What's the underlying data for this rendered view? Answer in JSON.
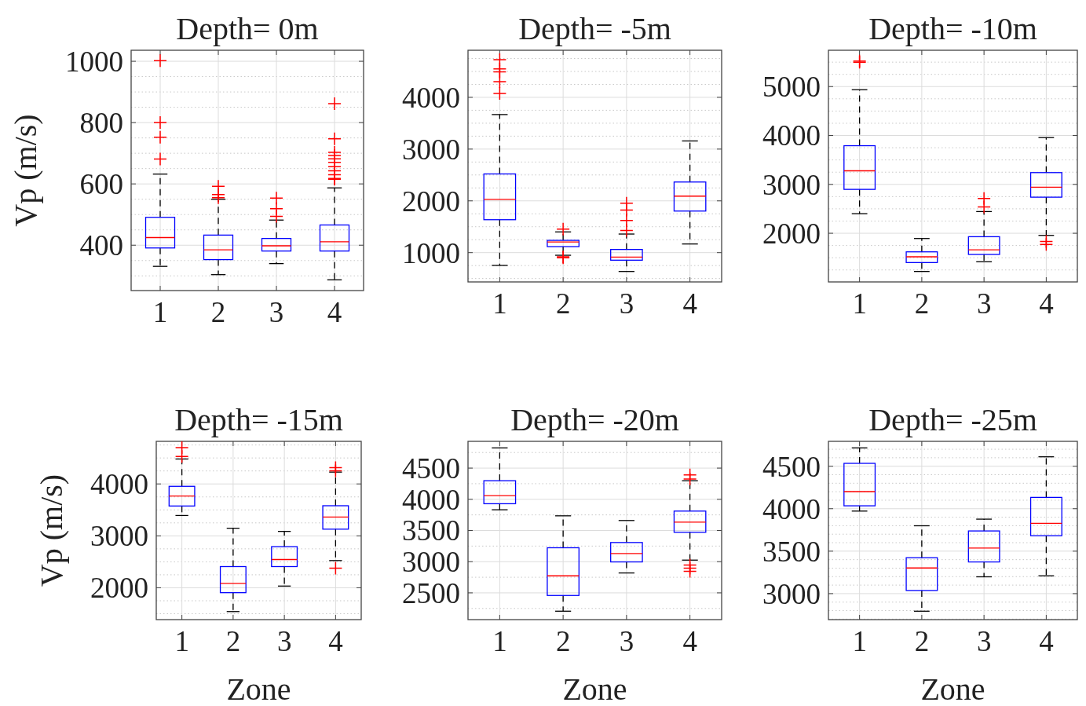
{
  "chart_data": [
    {
      "type": "box",
      "title": "Depth= 0m",
      "ylabel": "Vp (m/s)",
      "categories": [
        "1",
        "2",
        "3",
        "4"
      ],
      "grid": true,
      "marker": "cross",
      "ylim": [
        252,
        1036
      ],
      "yticks": [
        {
          "value": 300,
          "label": null
        },
        {
          "value": 350,
          "label": null
        },
        400,
        {
          "value": 450,
          "label": null
        },
        {
          "value": 500,
          "label": null
        },
        {
          "value": 550,
          "label": null
        },
        600,
        {
          "value": 650,
          "label": null
        },
        {
          "value": 700,
          "label": null
        },
        {
          "value": 750,
          "label": null
        },
        800,
        {
          "value": 850,
          "label": null
        },
        {
          "value": 900,
          "label": null
        },
        {
          "value": 950,
          "label": null
        },
        1000
      ],
      "boxes": [
        {
          "low": 331,
          "q1": 391,
          "median": 425,
          "q3": 491,
          "high": 632,
          "outliers": [
            1002,
            800,
            752,
            681
          ]
        },
        {
          "low": 304,
          "q1": 353,
          "median": 385,
          "q3": 433,
          "high": 550,
          "outliers": [
            592,
            565,
            555
          ]
        },
        {
          "low": 340,
          "q1": 381,
          "median": 398,
          "q3": 422,
          "high": 482,
          "outliers": [
            554,
            519,
            494
          ]
        },
        {
          "low": 287,
          "q1": 381,
          "median": 411,
          "q3": 466,
          "high": 587,
          "outliers": [
            862,
            747,
            703,
            693,
            682,
            670,
            656,
            643,
            630,
            618,
            615
          ]
        }
      ]
    },
    {
      "type": "box",
      "title": "Depth= -5m",
      "categories": [
        "1",
        "2",
        "3",
        "4"
      ],
      "grid": true,
      "marker": "cross",
      "ylim": [
        434,
        4909
      ],
      "yticks": [
        {
          "value": 500,
          "label": null
        },
        {
          "value": 750,
          "label": null
        },
        1000,
        {
          "value": 1250,
          "label": null
        },
        {
          "value": 1500,
          "label": null
        },
        {
          "value": 1750,
          "label": null
        },
        2000,
        {
          "value": 2250,
          "label": null
        },
        {
          "value": 2500,
          "label": null
        },
        {
          "value": 2750,
          "label": null
        },
        3000,
        {
          "value": 3250,
          "label": null
        },
        {
          "value": 3500,
          "label": null
        },
        {
          "value": 3750,
          "label": null
        },
        4000,
        {
          "value": 4250,
          "label": null
        },
        {
          "value": 4500,
          "label": null
        },
        {
          "value": 4750,
          "label": null
        }
      ],
      "boxes": [
        {
          "low": 753,
          "q1": 1636,
          "median": 2030,
          "q3": 2520,
          "high": 3667,
          "outliers": [
            4727,
            4550,
            4490,
            4303,
            4076
          ]
        },
        {
          "low": 949,
          "q1": 1116,
          "median": 1207,
          "q3": 1237,
          "high": 1400,
          "outliers": [
            1455,
            920,
            900
          ]
        },
        {
          "low": 636,
          "q1": 854,
          "median": 914,
          "q3": 1061,
          "high": 1359,
          "outliers": [
            1955,
            1823,
            1621,
            1429
          ]
        },
        {
          "low": 1167,
          "q1": 1803,
          "median": 2091,
          "q3": 2364,
          "high": 3157
        }
      ]
    },
    {
      "type": "box",
      "title": "Depth= -10m",
      "categories": [
        "1",
        "2",
        "3",
        "4"
      ],
      "grid": true,
      "marker": "cross",
      "ylim": [
        1005,
        5743
      ],
      "yticks": [
        {
          "value": 1250,
          "label": null
        },
        {
          "value": 1500,
          "label": null
        },
        {
          "value": 1750,
          "label": null
        },
        2000,
        {
          "value": 2250,
          "label": null
        },
        {
          "value": 2500,
          "label": null
        },
        {
          "value": 2750,
          "label": null
        },
        3000,
        {
          "value": 3250,
          "label": null
        },
        {
          "value": 3500,
          "label": null
        },
        {
          "value": 3750,
          "label": null
        },
        4000,
        {
          "value": 4250,
          "label": null
        },
        {
          "value": 4500,
          "label": null
        },
        {
          "value": 4750,
          "label": null
        },
        5000,
        {
          "value": 5250,
          "label": null
        },
        {
          "value": 5500,
          "label": null
        }
      ],
      "boxes": [
        {
          "low": 2401,
          "q1": 2898,
          "median": 3278,
          "q3": 3791,
          "high": 4936,
          "outliers": [
            5524,
            5497
          ]
        },
        {
          "low": 1219,
          "q1": 1401,
          "median": 1519,
          "q3": 1620,
          "high": 1893
        },
        {
          "low": 1417,
          "q1": 1567,
          "median": 1663,
          "q3": 1930,
          "high": 2444,
          "outliers": [
            2711,
            2540
          ]
        },
        {
          "low": 1957,
          "q1": 2738,
          "median": 2941,
          "q3": 3241,
          "high": 3957,
          "outliers": [
            1834,
            1770
          ]
        }
      ]
    },
    {
      "type": "box",
      "title": "Depth= -15m",
      "ylabel": "Vp (m/s)",
      "xlabel": "Zone",
      "categories": [
        "1",
        "2",
        "3",
        "4"
      ],
      "grid": true,
      "marker": "cross",
      "ylim": [
        1387,
        4820
      ],
      "yticks": [
        {
          "value": 1500,
          "label": null
        },
        {
          "value": 1750,
          "label": null
        },
        2000,
        {
          "value": 2250,
          "label": null
        },
        {
          "value": 2500,
          "label": null
        },
        {
          "value": 2750,
          "label": null
        },
        3000,
        {
          "value": 3250,
          "label": null
        },
        {
          "value": 3500,
          "label": null
        },
        {
          "value": 3750,
          "label": null
        },
        4000,
        {
          "value": 4250,
          "label": null
        },
        {
          "value": 4500,
          "label": null
        },
        {
          "value": 4750,
          "label": null
        }
      ],
      "boxes": [
        {
          "low": 3392,
          "q1": 3575,
          "median": 3767,
          "q3": 3954,
          "high": 4480,
          "outliers": [
            4700,
            4530
          ]
        },
        {
          "low": 1542,
          "q1": 1906,
          "median": 2084,
          "q3": 2408,
          "high": 3147
        },
        {
          "low": 2033,
          "q1": 2408,
          "median": 2544,
          "q3": 2792,
          "high": 3086
        },
        {
          "low": 2524,
          "q1": 3129,
          "median": 3362,
          "q3": 3580,
          "high": 4228,
          "outliers": [
            4314,
            4253,
            2377
          ]
        }
      ]
    },
    {
      "type": "box",
      "title": "Depth= -20m",
      "xlabel": "Zone",
      "categories": [
        "1",
        "2",
        "3",
        "4"
      ],
      "grid": true,
      "marker": "cross",
      "ylim": [
        2071,
        4929
      ],
      "yticks": [
        {
          "value": 2250,
          "label": null
        },
        2500,
        {
          "value": 2750,
          "label": null
        },
        3000,
        {
          "value": 3250,
          "label": null
        },
        3500,
        {
          "value": 3750,
          "label": null
        },
        4000,
        {
          "value": 4250,
          "label": null
        },
        4500,
        {
          "value": 4750,
          "label": null
        }
      ],
      "boxes": [
        {
          "low": 3832,
          "q1": 3929,
          "median": 4059,
          "q3": 4298,
          "high": 4824
        },
        {
          "low": 2206,
          "q1": 2458,
          "median": 2773,
          "q3": 3223,
          "high": 3735
        },
        {
          "low": 2819,
          "q1": 2996,
          "median": 3130,
          "q3": 3307,
          "high": 3660
        },
        {
          "low": 3025,
          "q1": 3471,
          "median": 3634,
          "q3": 3811,
          "high": 4298,
          "outliers": [
            4391,
            4324,
            2945,
            2895,
            2845
          ]
        }
      ]
    },
    {
      "type": "box",
      "title": "Depth= -25m",
      "xlabel": "Zone",
      "categories": [
        "1",
        "2",
        "3",
        "4"
      ],
      "grid": true,
      "marker": "cross",
      "ylim": [
        2694,
        4793
      ],
      "yticks": [
        {
          "value": 2700,
          "label": null
        },
        {
          "value": 2800,
          "label": null
        },
        {
          "value": 2900,
          "label": null
        },
        3000,
        {
          "value": 3100,
          "label": null
        },
        {
          "value": 3200,
          "label": null
        },
        {
          "value": 3300,
          "label": null
        },
        {
          "value": 3400,
          "label": null
        },
        3500,
        {
          "value": 3600,
          "label": null
        },
        {
          "value": 3700,
          "label": null
        },
        {
          "value": 3800,
          "label": null
        },
        {
          "value": 3900,
          "label": null
        },
        4000,
        {
          "value": 4100,
          "label": null
        },
        {
          "value": 4200,
          "label": null
        },
        {
          "value": 4300,
          "label": null
        },
        {
          "value": 4400,
          "label": null
        },
        4500,
        {
          "value": 4600,
          "label": null
        },
        {
          "value": 4700,
          "label": null
        }
      ],
      "boxes": [
        {
          "low": 3972,
          "q1": 4034,
          "median": 4201,
          "q3": 4534,
          "high": 4716
        },
        {
          "low": 2793,
          "q1": 3037,
          "median": 3302,
          "q3": 3423,
          "high": 3799
        },
        {
          "low": 3198,
          "q1": 3373,
          "median": 3537,
          "q3": 3738,
          "high": 3877
        },
        {
          "low": 3210,
          "q1": 3682,
          "median": 3827,
          "q3": 4133,
          "high": 4611
        }
      ]
    }
  ]
}
